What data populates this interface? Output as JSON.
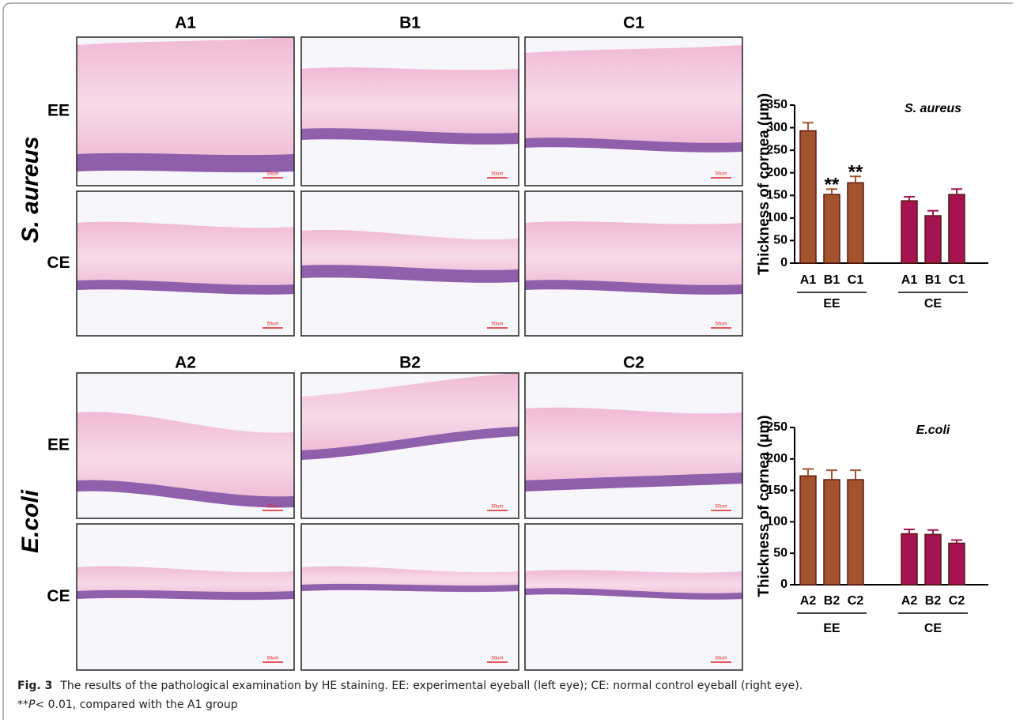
{
  "figure": {
    "blocks": [
      {
        "organism": "S. aureus",
        "columns": [
          "A1",
          "B1",
          "C1"
        ],
        "rows": [
          "EE",
          "CE"
        ]
      },
      {
        "organism": "E.coli",
        "columns": [
          "A2",
          "B2",
          "C2"
        ],
        "rows": [
          "EE",
          "CE"
        ]
      }
    ],
    "scale_bar": "50um"
  },
  "chart_data": [
    {
      "type": "bar",
      "title": "S. aureus",
      "y_label": "Thickness of cornea (μm)",
      "categories": [
        "A1",
        "B1",
        "C1"
      ],
      "ylim": [
        0,
        350
      ],
      "yticks": [
        0,
        50,
        100,
        150,
        200,
        250,
        300,
        350
      ],
      "series": [
        {
          "name": "EE",
          "color": "#a4532f",
          "values": [
            293,
            152,
            178
          ],
          "errors": [
            18,
            12,
            14
          ],
          "significance": [
            null,
            "**",
            "**"
          ]
        },
        {
          "name": "CE",
          "color": "#a51351",
          "values": [
            138,
            105,
            152
          ],
          "errors": [
            9,
            11,
            12
          ]
        }
      ]
    },
    {
      "type": "bar",
      "title": "E.coli",
      "y_label": "Thickness of cornea (μm)",
      "categories": [
        "A2",
        "B2",
        "C2"
      ],
      "ylim": [
        0,
        250
      ],
      "yticks": [
        0,
        50,
        100,
        150,
        200,
        250
      ],
      "series": [
        {
          "name": "EE",
          "color": "#a4532f",
          "values": [
            173,
            167,
            167
          ],
          "errors": [
            11,
            15,
            15
          ]
        },
        {
          "name": "CE",
          "color": "#a51351",
          "values": [
            81,
            80,
            66
          ],
          "errors": [
            7,
            7,
            5
          ]
        }
      ]
    }
  ],
  "caption": {
    "label": "Fig. 3",
    "text": "The results of the pathological examination by HE staining. EE: experimental eyeball (left eye); CE: normal control eyeball (right eye).",
    "note_mark": "**",
    "note_p": "P",
    "note_text": "< 0.01, compared with the A1 group"
  }
}
